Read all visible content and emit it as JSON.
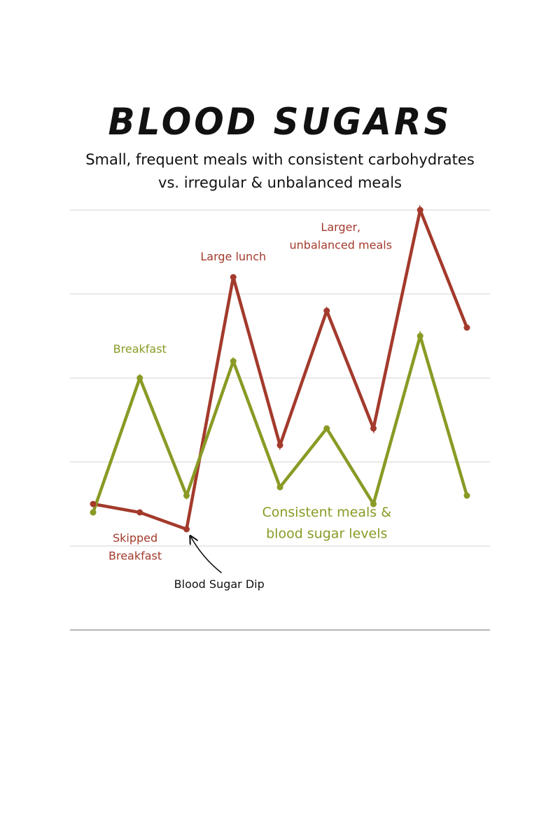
{
  "title": "BLOOD SUGARS",
  "subtitle": {
    "line1": "Small, frequent meals with consistent carbohydrates",
    "line2": "vs. irregular & unbalanced meals"
  },
  "colors": {
    "irregular": "#a33a2c",
    "consistent": "#8a9a25",
    "grid": "#dddddd",
    "axis": "#b5b5b5",
    "text": "#111111"
  },
  "chart_data": {
    "type": "line",
    "title": "BLOOD SUGARS",
    "xlabel": "",
    "ylabel": "",
    "grid": true,
    "x": [
      1,
      2,
      3,
      4,
      5,
      6,
      7,
      8,
      9
    ],
    "ylim": [
      0,
      5
    ],
    "series": [
      {
        "name": "Irregular & unbalanced meals",
        "color": "#a33a2c",
        "values": [
          1.5,
          1.4,
          1.2,
          4.2,
          2.2,
          3.8,
          2.4,
          5.0,
          3.6
        ]
      },
      {
        "name": "Consistent meals",
        "color": "#8a9a25",
        "values": [
          1.4,
          3.0,
          1.6,
          3.2,
          1.7,
          2.4,
          1.5,
          3.5,
          1.6
        ]
      }
    ],
    "annotations": [
      {
        "id": "breakfast",
        "lines": [
          "Breakfast"
        ],
        "color": "#8a9a25",
        "x": 2,
        "y": 3.3,
        "size": 16
      },
      {
        "id": "large-lunch",
        "lines": [
          "Large lunch"
        ],
        "color": "#a33a2c",
        "x": 4,
        "y": 4.4,
        "size": 16
      },
      {
        "id": "larger-meals",
        "lines": [
          "Larger,",
          "unbalanced meals"
        ],
        "color": "#a33a2c",
        "x": 6.3,
        "y": 4.75,
        "size": 16
      },
      {
        "id": "skipped-breakfast",
        "lines": [
          "Skipped",
          "Breakfast"
        ],
        "color": "#a33a2c",
        "x": 1.9,
        "y": 1.05,
        "size": 16
      },
      {
        "id": "consistent-levels",
        "lines": [
          "Consistent meals &",
          "blood sugar levels"
        ],
        "color": "#8a9a25",
        "x": 6.0,
        "y": 1.35,
        "size": 19
      },
      {
        "id": "blood-sugar-dip",
        "lines": [
          "Blood Sugar Dip"
        ],
        "color": "#111111",
        "x": 3.7,
        "y": 0.5,
        "size": 16
      }
    ],
    "arrows": [
      {
        "id": "dip-arrow",
        "from": [
          3.75,
          0.68
        ],
        "to": [
          3.08,
          1.12
        ]
      }
    ]
  }
}
